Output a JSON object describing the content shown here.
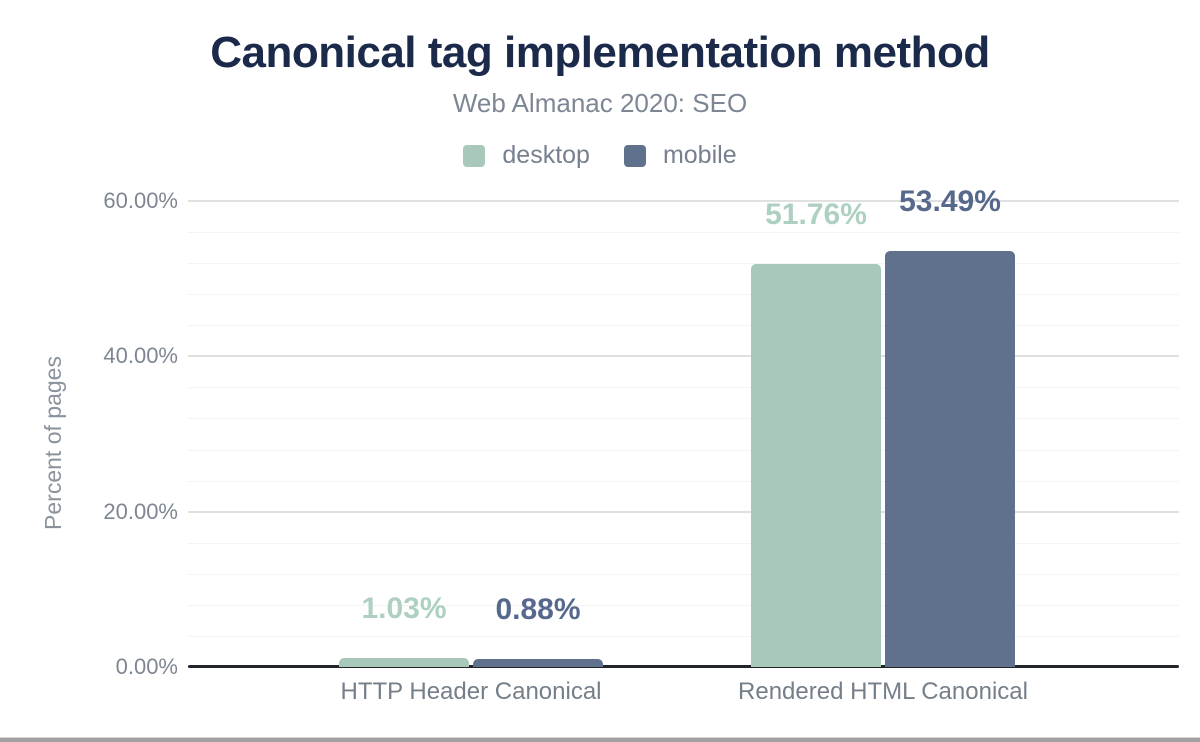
{
  "chart_data": {
    "type": "bar",
    "title": "Canonical tag implementation method",
    "subtitle": "Web Almanac 2020: SEO",
    "ylabel": "Percent of pages",
    "xlabel": "",
    "categories": [
      "HTTP Header Canonical",
      "Rendered HTML Canonical"
    ],
    "series": [
      {
        "name": "desktop",
        "color": "#a8c9b9",
        "label_color": "#aed0c0",
        "values": [
          1.03,
          51.76
        ],
        "labels": [
          "1.03%",
          "51.76%"
        ]
      },
      {
        "name": "mobile",
        "color": "#60718e",
        "label_color": "#56698d",
        "values": [
          0.88,
          53.49
        ],
        "labels": [
          "0.88%",
          "53.49%"
        ]
      }
    ],
    "y_axis": {
      "max": 60,
      "minor_step": 4,
      "major_step": 20,
      "ticks": [
        {
          "value": 0,
          "label": "0.00%"
        },
        {
          "value": 20,
          "label": "20.00%"
        },
        {
          "value": 40,
          "label": "40.00%"
        },
        {
          "value": 60,
          "label": "60.00%"
        }
      ]
    },
    "legend_position": "top",
    "grid": true
  },
  "colors": {
    "title": "#1b2a4a",
    "subtitle": "#7d8794",
    "legend_text": "#76808e",
    "tick_text": "#7e8791",
    "axis_title_text": "#8a939d",
    "category_text": "#757f89",
    "grid_minor": "#f4f4f4",
    "grid_major": "#e0e0e0",
    "axis_line": "#22252a",
    "bottom_bar": "#a1a1a1"
  }
}
